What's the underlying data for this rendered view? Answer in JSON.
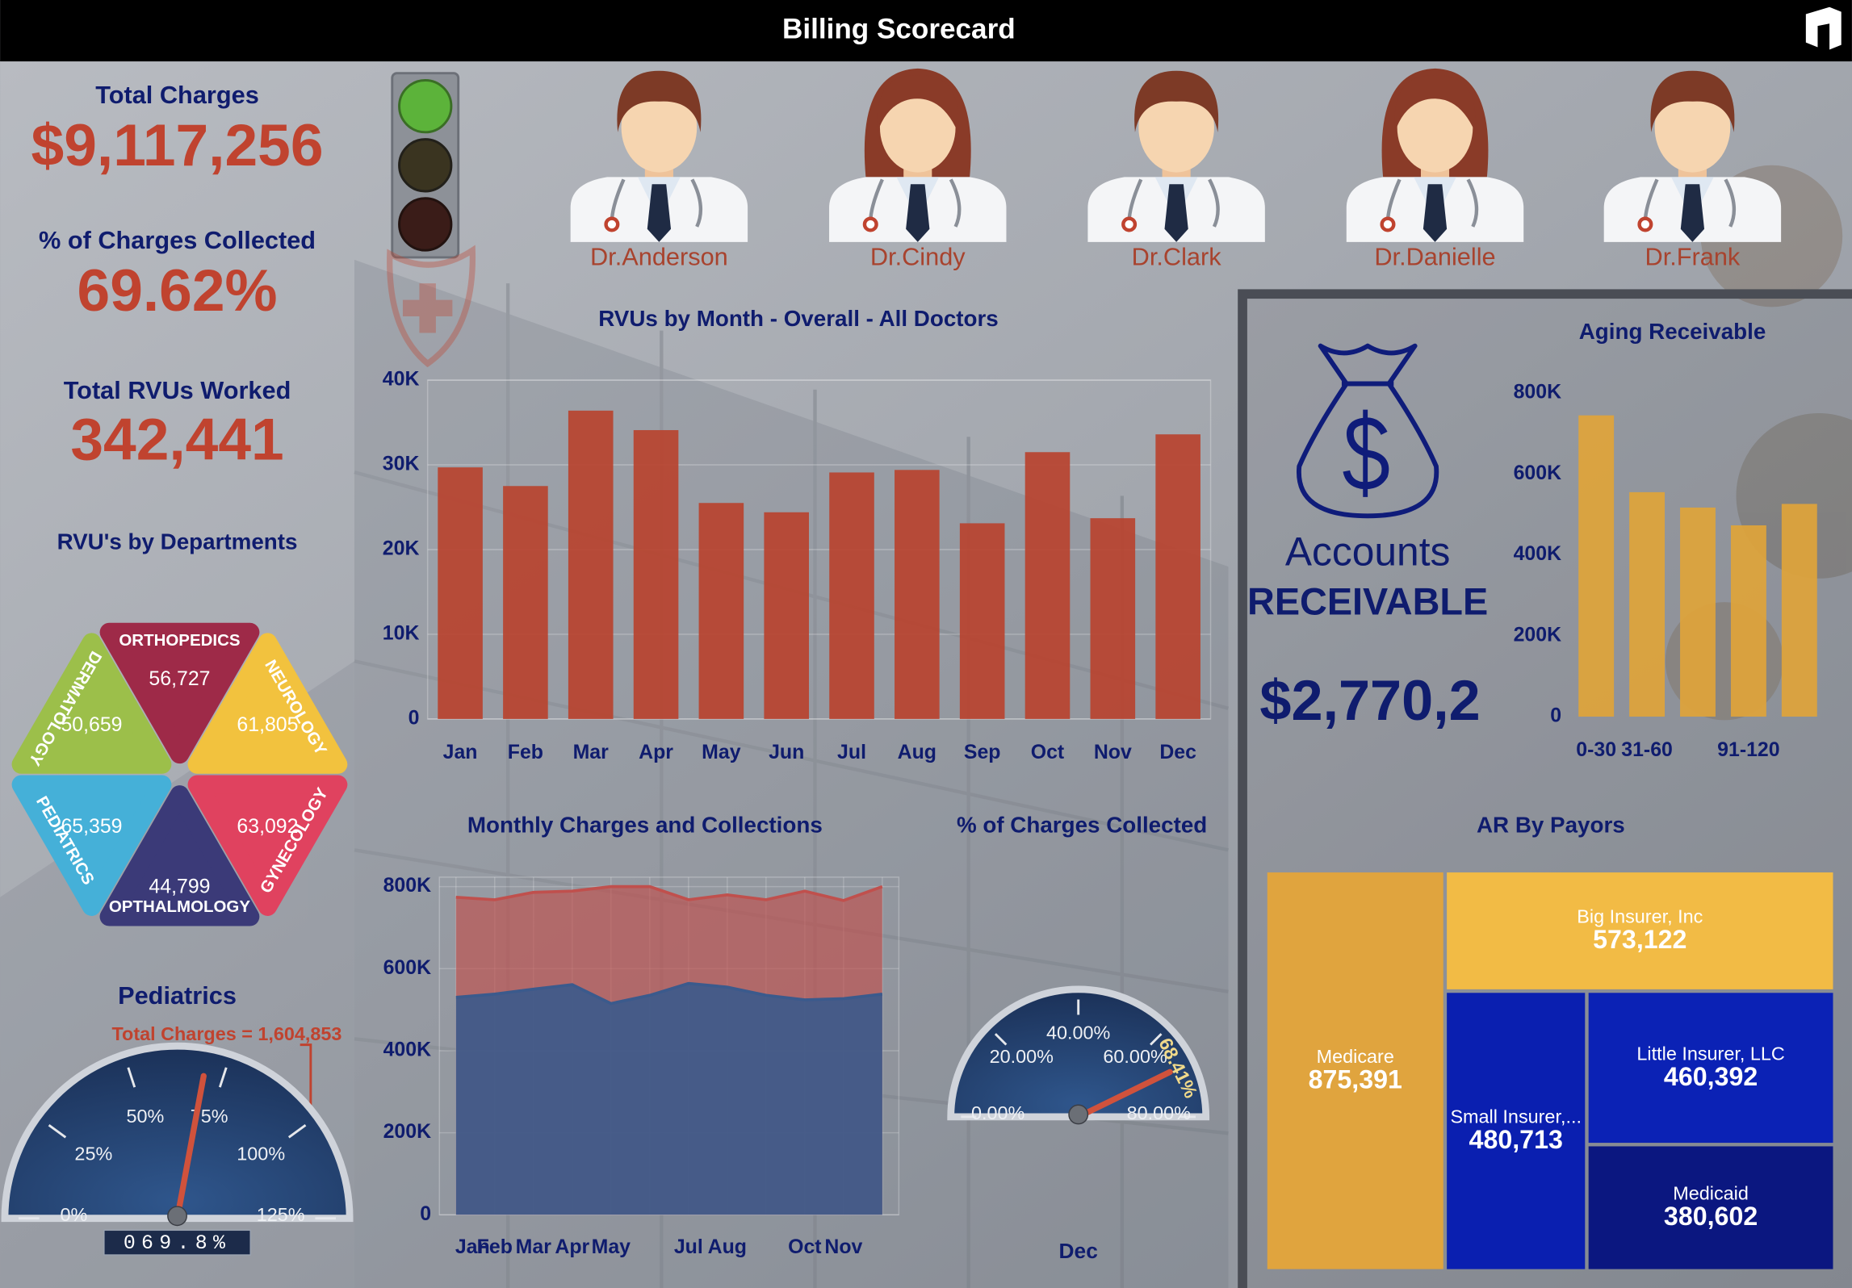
{
  "header": {
    "title": "Billing Scorecard"
  },
  "kpis": [
    {
      "label": "Total Charges",
      "value": "$9,117,256"
    },
    {
      "label": "% of Charges Collected",
      "value": "69.62%"
    },
    {
      "label": "Total RVUs Worked",
      "value": "342,441"
    }
  ],
  "doctors": [
    "Dr.Anderson",
    "Dr.Cindy",
    "Dr.Clark",
    "Dr.Danielle",
    "Dr.Frank"
  ],
  "accounts_receivable": {
    "line1": "Accounts",
    "line2": "RECEIVABLE",
    "amount": "$2,770,2"
  },
  "chart_data": [
    {
      "type": "triangles",
      "title": "RVU's by Departments",
      "categories": [
        "ORTHOPEDICS",
        "DERMATOLOGY",
        "NEUROLOGY",
        "PEDIATRICS",
        "OPTHALMOLOGY",
        "GYNECOLOGY"
      ],
      "values": [
        56727,
        50659,
        61805,
        65359,
        44799,
        63092
      ],
      "value_labels": [
        "56,727",
        "50,659",
        "61,805",
        "65,359",
        "44,799",
        "63,092"
      ],
      "colors": [
        "#9e2a48",
        "#9cbf4a",
        "#f2c23e",
        "#45b0d8",
        "#3b3a78",
        "#e0425f"
      ]
    },
    {
      "type": "gauge",
      "title": "Pediatrics",
      "annotation": "Total Charges = 1,604,853",
      "ylim": [
        0,
        125
      ],
      "yticks": [
        {
          "value": 0,
          "label": "0%"
        },
        {
          "value": 25,
          "label": "25%"
        },
        {
          "value": 50,
          "label": "50%"
        },
        {
          "value": 75,
          "label": "75%"
        },
        {
          "value": 100,
          "label": "100%"
        },
        {
          "value": 125,
          "label": "125%"
        }
      ],
      "values": [
        69.8
      ],
      "value_labels": [
        "069.8%"
      ],
      "color": "#d0523c"
    },
    {
      "type": "bar",
      "title": "RVUs by Month - Overall - All Doctors",
      "categories": [
        "Jan",
        "Feb",
        "Mar",
        "Apr",
        "May",
        "Jun",
        "Jul",
        "Aug",
        "Sep",
        "Oct",
        "Nov",
        "Dec"
      ],
      "values": [
        29700,
        27500,
        36400,
        34100,
        25500,
        24400,
        29100,
        29400,
        23100,
        31500,
        23700,
        33600
      ],
      "color": "#b8432f",
      "ylim": [
        0,
        40000
      ],
      "yticks": [
        0,
        {
          "value": 10000,
          "label": "10K"
        },
        {
          "value": 20000,
          "label": "20K"
        },
        {
          "value": 30000,
          "label": "30K"
        },
        {
          "value": 40000,
          "label": "40K"
        }
      ],
      "grid": true
    },
    {
      "type": "bar",
      "title": "Aging Receivable",
      "categories": [
        "0-30",
        "31-60",
        null,
        "91-120",
        null
      ],
      "values": [
        745000,
        555000,
        517000,
        473000,
        526000
      ],
      "color": "#e0a43a",
      "ylim": [
        0,
        800000
      ],
      "yticks": [
        0,
        {
          "value": 200000,
          "label": "200K"
        },
        {
          "value": 400000,
          "label": "400K"
        },
        {
          "value": 600000,
          "label": "600K"
        },
        {
          "value": 800000,
          "label": "800K"
        }
      ],
      "grid": false
    },
    {
      "type": "area",
      "title": "Monthly Charges and Collections",
      "categories": [
        "Jan",
        "Feb",
        "Mar",
        "Apr",
        "May",
        null,
        "Jul",
        "Aug",
        null,
        "Oct",
        "Nov",
        null
      ],
      "series": [
        {
          "color": "#c0504d",
          "values": [
            774000,
            768000,
            786000,
            789000,
            800000,
            800000,
            768000,
            780000,
            768000,
            789000,
            766000,
            800000
          ]
        },
        {
          "color": "#3b5a8c",
          "values": [
            530000,
            538000,
            550000,
            561000,
            515000,
            535000,
            564000,
            555000,
            535000,
            524000,
            527000,
            538000
          ]
        }
      ],
      "ylim": [
        0,
        800000
      ],
      "yticks": [
        0,
        {
          "value": 200000,
          "label": "200K"
        },
        {
          "value": 400000,
          "label": "400K"
        },
        {
          "value": 600000,
          "label": "600K"
        },
        {
          "value": 800000,
          "label": "800K"
        }
      ],
      "grid": true
    },
    {
      "type": "gauge",
      "title": "% of Charges Collected",
      "categories": [
        "Dec"
      ],
      "ylim": [
        0,
        80
      ],
      "yticks": [
        {
          "value": 0,
          "label": "0.00%"
        },
        {
          "value": 20,
          "label": "20.00%"
        },
        {
          "value": 40,
          "label": "40.00%"
        },
        {
          "value": 60,
          "label": "60.00%"
        },
        {
          "value": 80,
          "label": "80.00%"
        }
      ],
      "values": [
        68.41
      ],
      "value_labels": [
        "68.41%"
      ],
      "color": "#d0523c"
    },
    {
      "type": "treemap",
      "title": "AR By Payors",
      "categories": [
        "Medicare",
        "Big Insurer, Inc",
        "Small Insurer,...",
        "Little Insurer, LLC",
        "Medicaid"
      ],
      "values": [
        875391,
        573122,
        480713,
        460392,
        380602
      ],
      "value_labels": [
        "875,391",
        "573,122",
        "480,713",
        "460,392",
        "380,602"
      ],
      "colors": [
        "#e0a43e",
        "#f2bb45",
        "#0a1fb0",
        "#0b22b5",
        "#0b1780"
      ]
    }
  ]
}
